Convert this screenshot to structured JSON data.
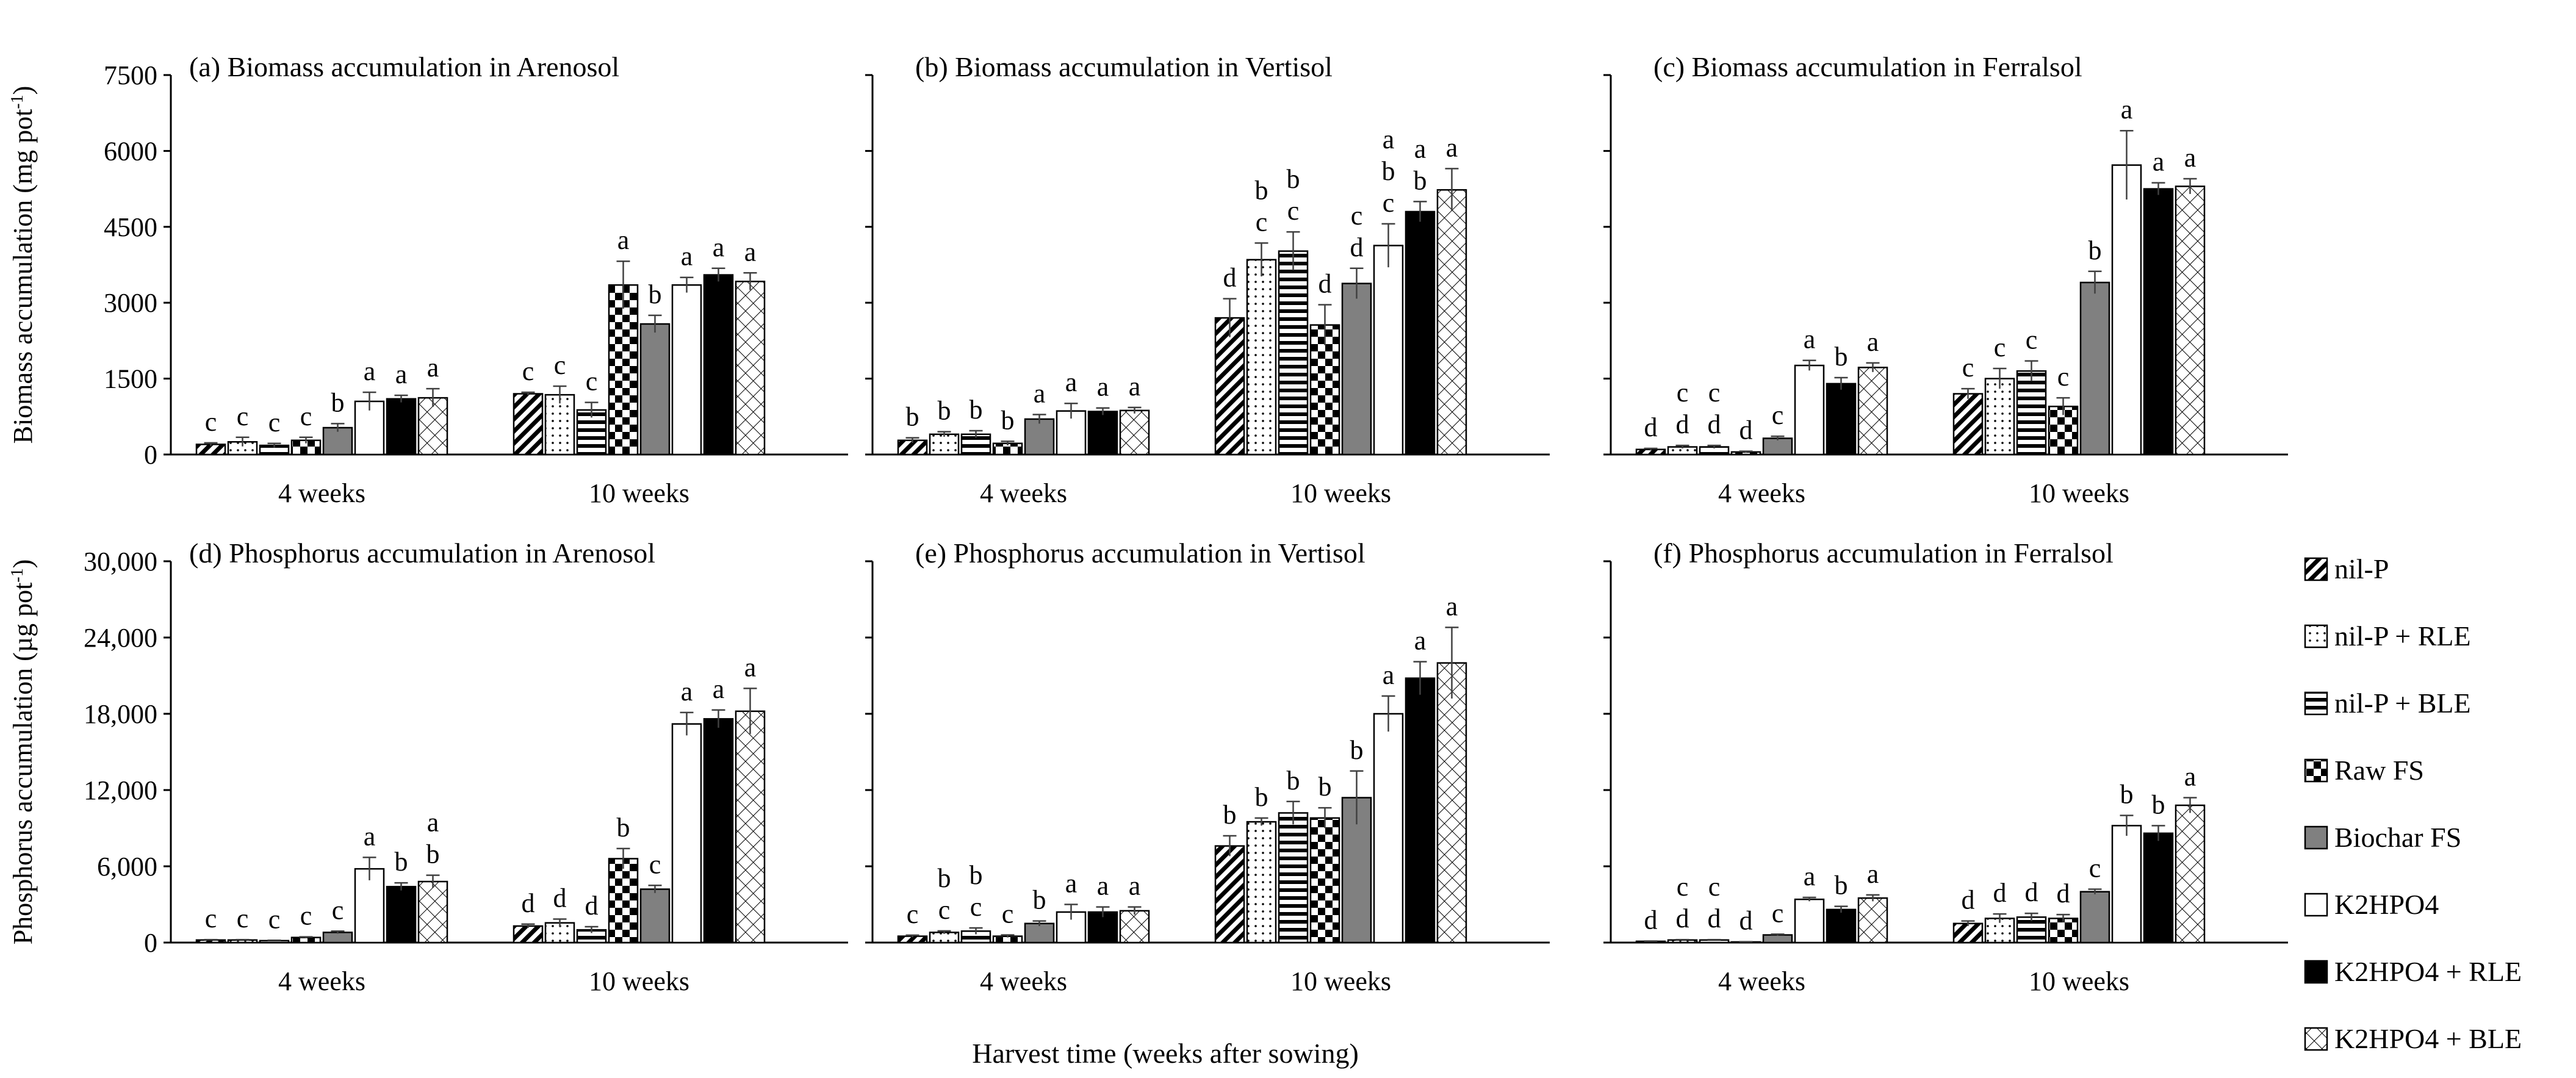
{
  "figure": {
    "xlabel": "Harvest time (weeks after sowing)",
    "groups": [
      "4 weeks",
      "10 weeks"
    ]
  },
  "legend": {
    "position": "right",
    "items": [
      {
        "name": "nil-P",
        "pattern": "diag",
        "fill": "#ffffff"
      },
      {
        "name": "nil-P + RLE",
        "pattern": "dots",
        "fill": "#ffffff"
      },
      {
        "name": "nil-P + BLE",
        "pattern": "hlines",
        "fill": "#ffffff"
      },
      {
        "name": "Raw FS",
        "pattern": "checker",
        "fill": "#ffffff"
      },
      {
        "name": "Biochar FS",
        "pattern": "solid",
        "fill": "#808080"
      },
      {
        "name": "K2HPO4",
        "pattern": "solid",
        "fill": "#ffffff"
      },
      {
        "name": "K2HPO4 + RLE",
        "pattern": "solid",
        "fill": "#000000"
      },
      {
        "name": "K2HPO4 + BLE",
        "pattern": "crosshatch",
        "fill": "#ffffff"
      }
    ]
  },
  "chart_data": [
    {
      "type": "bar",
      "panel": "a",
      "title": "(a) Biomass accumulation in Arenosol",
      "ylabel": "Biomass accumulation (mg pot",
      "ylabel_sup": "-1",
      "ylabel_end": ")",
      "ylim": [
        0,
        7500
      ],
      "yticks": [
        "0",
        "1500",
        "3000",
        "4500",
        "6000",
        "7500"
      ],
      "tick_values": [
        0,
        1500,
        3000,
        4500,
        6000,
        7500
      ],
      "show_yaxis_labels": true,
      "categories": [
        "4 weeks",
        "10 weeks"
      ],
      "values": [
        [
          200,
          250,
          180,
          280,
          530,
          1050,
          1100,
          1120
        ],
        [
          1200,
          1180,
          880,
          3350,
          2580,
          3350,
          3550,
          3420
        ]
      ],
      "errors": [
        [
          30,
          90,
          40,
          60,
          80,
          180,
          70,
          180
        ],
        [
          30,
          170,
          150,
          470,
          170,
          150,
          130,
          170
        ]
      ],
      "letters": [
        [
          [
            "c"
          ],
          [
            "c"
          ],
          [
            "c"
          ],
          [
            "c"
          ],
          [
            "b"
          ],
          [
            "a"
          ],
          [
            "a"
          ],
          [
            "a"
          ]
        ],
        [
          [
            "c"
          ],
          [
            "c"
          ],
          [
            "c"
          ],
          [
            "a"
          ],
          [
            "b"
          ],
          [
            "a"
          ],
          [
            "a"
          ],
          [
            "a"
          ]
        ]
      ]
    },
    {
      "type": "bar",
      "panel": "b",
      "title": "(b) Biomass accumulation in Vertisol",
      "ylim": [
        0,
        7500
      ],
      "tick_values": [
        0,
        1500,
        3000,
        4500,
        6000,
        7500
      ],
      "show_yaxis_labels": false,
      "categories": [
        "4 weeks",
        "10 weeks"
      ],
      "values": [
        [
          280,
          400,
          400,
          220,
          700,
          860,
          850,
          870
        ],
        [
          2700,
          3850,
          4020,
          2560,
          3380,
          4130,
          4800,
          5230
        ]
      ],
      "errors": [
        [
          50,
          50,
          70,
          40,
          90,
          150,
          70,
          60
        ],
        [
          380,
          330,
          380,
          400,
          300,
          430,
          200,
          420
        ]
      ],
      "letters": [
        [
          [
            "b"
          ],
          [
            "b"
          ],
          [
            "b"
          ],
          [
            "b"
          ],
          [
            "a"
          ],
          [
            "a"
          ],
          [
            "a"
          ],
          [
            "a"
          ]
        ],
        [
          [
            "d"
          ],
          [
            "b",
            "c"
          ],
          [
            "b",
            "c"
          ],
          [
            "d"
          ],
          [
            "c",
            "d"
          ],
          [
            "a",
            "b",
            "c"
          ],
          [
            "a",
            "b"
          ],
          [
            "a"
          ]
        ]
      ]
    },
    {
      "type": "bar",
      "panel": "c",
      "title": "(c) Biomass accumulation in Ferralsol",
      "ylim": [
        0,
        7500
      ],
      "tick_values": [
        0,
        1500,
        3000,
        4500,
        6000,
        7500
      ],
      "show_yaxis_labels": false,
      "categories": [
        "4 weeks",
        "10 weeks"
      ],
      "values": [
        [
          100,
          150,
          150,
          50,
          320,
          1760,
          1400,
          1720
        ],
        [
          1200,
          1500,
          1650,
          950,
          3400,
          5720,
          5250,
          5300
        ]
      ],
      "errors": [
        [
          20,
          30,
          30,
          15,
          40,
          100,
          120,
          90
        ],
        [
          100,
          200,
          200,
          170,
          220,
          680,
          120,
          150
        ]
      ],
      "letters": [
        [
          [
            "d"
          ],
          [
            "c",
            "d"
          ],
          [
            "c",
            "d"
          ],
          [
            "d"
          ],
          [
            "c"
          ],
          [
            "a"
          ],
          [
            "b"
          ],
          [
            "a"
          ]
        ],
        [
          [
            "c"
          ],
          [
            "c"
          ],
          [
            "c"
          ],
          [
            "c"
          ],
          [
            "b"
          ],
          [
            "a"
          ],
          [
            "a"
          ],
          [
            "a"
          ]
        ]
      ]
    },
    {
      "type": "bar",
      "panel": "d",
      "title": "(d) Phosphorus accumulation in Arenosol",
      "ylabel": "Phosphorus accumulation (µg pot",
      "ylabel_sup": "-1",
      "ylabel_end": ")",
      "ylim": [
        0,
        30000
      ],
      "yticks": [
        "0",
        "6,000",
        "12,000",
        "18,000",
        "24,000",
        "30,000"
      ],
      "tick_values": [
        0,
        6000,
        12000,
        18000,
        24000,
        30000
      ],
      "show_yaxis_labels": true,
      "categories": [
        "4 weeks",
        "10 weeks"
      ],
      "values": [
        [
          200,
          200,
          150,
          400,
          800,
          5800,
          4400,
          4800
        ],
        [
          1300,
          1550,
          1000,
          6600,
          4200,
          17200,
          17600,
          18200
        ]
      ],
      "errors": [
        [
          30,
          30,
          30,
          50,
          100,
          900,
          300,
          500
        ],
        [
          150,
          300,
          250,
          800,
          300,
          900,
          700,
          1800
        ]
      ],
      "letters": [
        [
          [
            "c"
          ],
          [
            "c"
          ],
          [
            "c"
          ],
          [
            "c"
          ],
          [
            "c"
          ],
          [
            "a"
          ],
          [
            "b"
          ],
          [
            "a",
            "b"
          ]
        ],
        [
          [
            "d"
          ],
          [
            "d"
          ],
          [
            "d"
          ],
          [
            "b"
          ],
          [
            "c"
          ],
          [
            "a"
          ],
          [
            "a"
          ],
          [
            "a"
          ]
        ]
      ]
    },
    {
      "type": "bar",
      "panel": "e",
      "title": "(e) Phosphorus accumulation in Vertisol",
      "ylim": [
        0,
        30000
      ],
      "tick_values": [
        0,
        6000,
        12000,
        18000,
        24000,
        30000
      ],
      "show_yaxis_labels": false,
      "categories": [
        "4 weeks",
        "10 weeks"
      ],
      "values": [
        [
          500,
          800,
          900,
          500,
          1500,
          2400,
          2400,
          2500
        ],
        [
          7600,
          9500,
          10200,
          9800,
          11400,
          18000,
          20800,
          22000
        ]
      ],
      "errors": [
        [
          80,
          120,
          250,
          100,
          200,
          600,
          400,
          300
        ],
        [
          800,
          300,
          900,
          800,
          2100,
          1400,
          1300,
          2800
        ]
      ],
      "letters": [
        [
          [
            "c"
          ],
          [
            "b",
            "c"
          ],
          [
            "b",
            "c"
          ],
          [
            "c"
          ],
          [
            "b"
          ],
          [
            "a"
          ],
          [
            "a"
          ],
          [
            "a"
          ]
        ],
        [
          [
            "b"
          ],
          [
            "b"
          ],
          [
            "b"
          ],
          [
            "b"
          ],
          [
            "b"
          ],
          [
            "a"
          ],
          [
            "a"
          ],
          [
            "a"
          ]
        ]
      ]
    },
    {
      "type": "bar",
      "panel": "f",
      "title": "(f) Phosphorus accumulation in Ferralsol",
      "ylim": [
        0,
        30000
      ],
      "tick_values": [
        0,
        6000,
        12000,
        18000,
        24000,
        30000
      ],
      "show_yaxis_labels": false,
      "categories": [
        "4 weeks",
        "10 weeks"
      ],
      "values": [
        [
          100,
          200,
          200,
          50,
          600,
          3400,
          2600,
          3500
        ],
        [
          1500,
          1900,
          2000,
          1900,
          4000,
          9200,
          8600,
          10800
        ]
      ],
      "errors": [
        [
          20,
          30,
          30,
          15,
          60,
          150,
          250,
          250
        ],
        [
          200,
          350,
          300,
          300,
          200,
          800,
          600,
          600
        ]
      ],
      "letters": [
        [
          [
            "d"
          ],
          [
            "c",
            "d"
          ],
          [
            "c",
            "d"
          ],
          [
            "d"
          ],
          [
            "c"
          ],
          [
            "a"
          ],
          [
            "b"
          ],
          [
            "a"
          ]
        ],
        [
          [
            "d"
          ],
          [
            "d"
          ],
          [
            "d"
          ],
          [
            "d"
          ],
          [
            "c"
          ],
          [
            "b"
          ],
          [
            "b"
          ],
          [
            "a"
          ]
        ]
      ]
    }
  ]
}
